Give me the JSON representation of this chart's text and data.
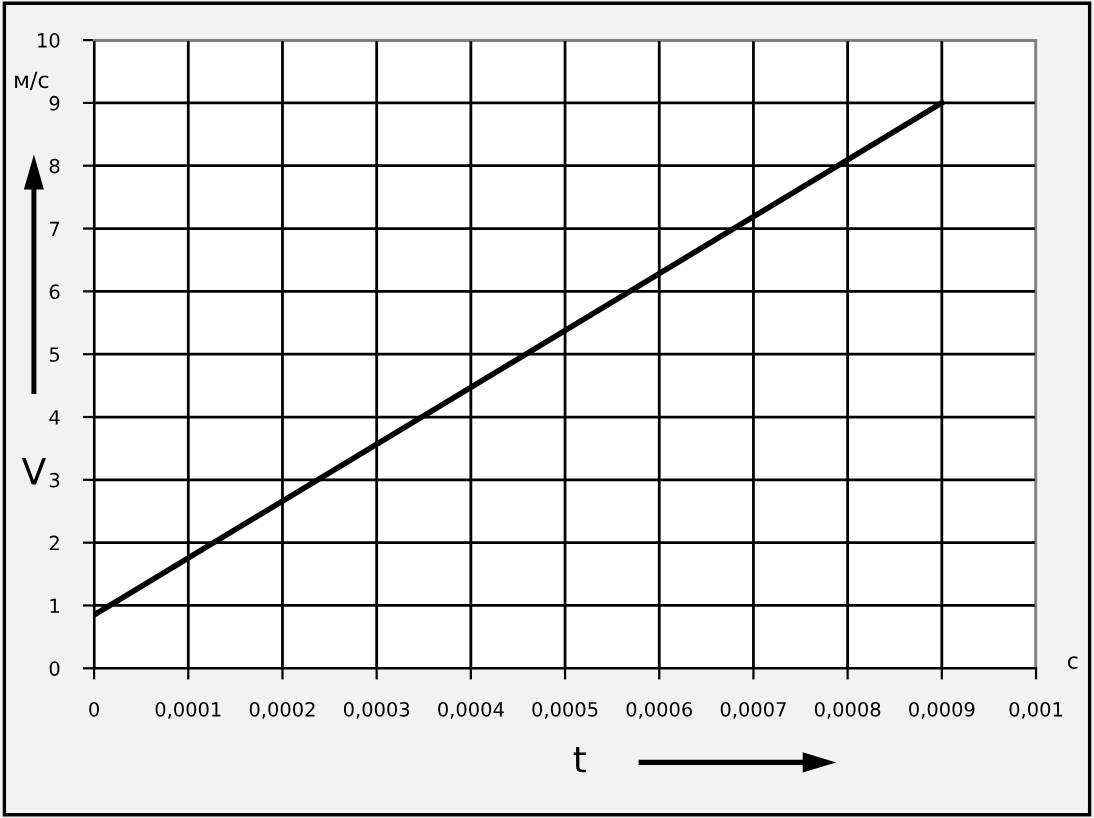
{
  "chart_data": {
    "type": "line",
    "xlabel": "t",
    "ylabel": "V",
    "annotations": [
      "м/с",
      "с"
    ],
    "x": [
      0,
      0.0009
    ],
    "series": [
      {
        "color": "#000000",
        "values": [
          0.85,
          9
        ]
      }
    ],
    "xlim": [
      0,
      0.001
    ],
    "xticks": [
      0,
      {
        "value": 0.0001,
        "label": "0,0001"
      },
      {
        "value": 0.0002,
        "label": "0,0002"
      },
      {
        "value": 0.0003,
        "label": "0,0003"
      },
      {
        "value": 0.0004,
        "label": "0,0004"
      },
      {
        "value": 0.0005,
        "label": "0,0005"
      },
      {
        "value": 0.0006,
        "label": "0,0006"
      },
      {
        "value": 0.0007,
        "label": "0,0007"
      },
      {
        "value": 0.0008,
        "label": "0,0008"
      },
      {
        "value": 0.0009,
        "label": "0,0009"
      },
      {
        "value": 0.001,
        "label": "0,001"
      }
    ],
    "ylim": [
      0,
      10
    ],
    "yticks": [
      0,
      1,
      2,
      3,
      4,
      5,
      6,
      7,
      8,
      9,
      10
    ],
    "grid": true,
    "legend": false,
    "marker": "none",
    "line_style": "solid"
  }
}
